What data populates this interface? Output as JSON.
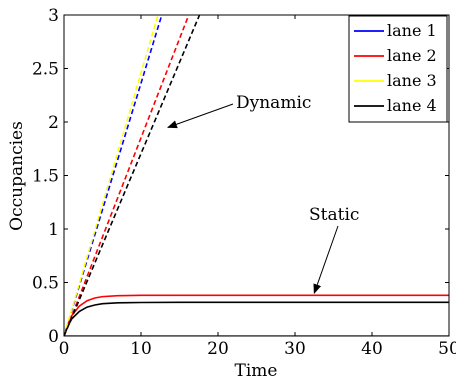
{
  "chart_data": {
    "type": "line",
    "xlabel": "Time",
    "ylabel": "Occupancies",
    "xlim": [
      0,
      50
    ],
    "ylim": [
      0,
      3
    ],
    "xticks": [
      0,
      10,
      20,
      30,
      40,
      50
    ],
    "yticks": [
      0,
      0.5,
      1,
      1.5,
      2,
      2.5,
      3
    ],
    "xtick_labels": [
      "0",
      "10",
      "20",
      "30",
      "40",
      "50"
    ],
    "ytick_labels": [
      "0",
      "0.5",
      "1",
      "1.5",
      "2",
      "2.5",
      "3"
    ],
    "grid": false,
    "legend_position": "top-right",
    "series": [
      {
        "name": "lane 1",
        "color": "#0000ff",
        "style": "solid",
        "x": [
          0,
          50
        ],
        "y": [
          0,
          0
        ]
      },
      {
        "name": "lane 2",
        "color": "#ff0000",
        "style": "solid",
        "x": [
          0,
          0.5,
          1,
          2,
          3,
          4,
          5,
          7,
          10,
          15,
          20,
          30,
          40,
          50
        ],
        "y": [
          0,
          0.11,
          0.19,
          0.28,
          0.33,
          0.355,
          0.368,
          0.377,
          0.38,
          0.38,
          0.38,
          0.38,
          0.38,
          0.38
        ]
      },
      {
        "name": "lane 3",
        "color": "#ffff00",
        "style": "solid",
        "x": [
          0,
          50
        ],
        "y": [
          0,
          0
        ]
      },
      {
        "name": "lane 4",
        "color": "#000000",
        "style": "solid",
        "x": [
          0,
          0.5,
          1,
          2,
          3,
          4,
          5,
          7,
          10,
          15,
          20,
          30,
          40,
          50
        ],
        "y": [
          0,
          0.09,
          0.16,
          0.23,
          0.27,
          0.29,
          0.302,
          0.31,
          0.313,
          0.315,
          0.315,
          0.315,
          0.315,
          0.315
        ]
      },
      {
        "name": "lane 1",
        "color": "#0000ff",
        "style": "dashed",
        "x": [
          0,
          12.7
        ],
        "y": [
          0,
          3
        ]
      },
      {
        "name": "lane 2",
        "color": "#ff0000",
        "style": "dashed",
        "x": [
          0,
          16.2
        ],
        "y": [
          0,
          3
        ]
      },
      {
        "name": "lane 3",
        "color": "#ffff00",
        "style": "dashed",
        "x": [
          0,
          12.2
        ],
        "y": [
          0,
          3
        ]
      },
      {
        "name": "lane 4",
        "color": "#000000",
        "style": "dashed",
        "x": [
          0,
          17.6
        ],
        "y": [
          0,
          3
        ]
      }
    ],
    "annotations": [
      {
        "text": "Dynamic",
        "arrow_to": [
          13.5,
          1.95
        ]
      },
      {
        "text": "Static",
        "arrow_to": [
          32.5,
          0.4
        ]
      }
    ]
  }
}
